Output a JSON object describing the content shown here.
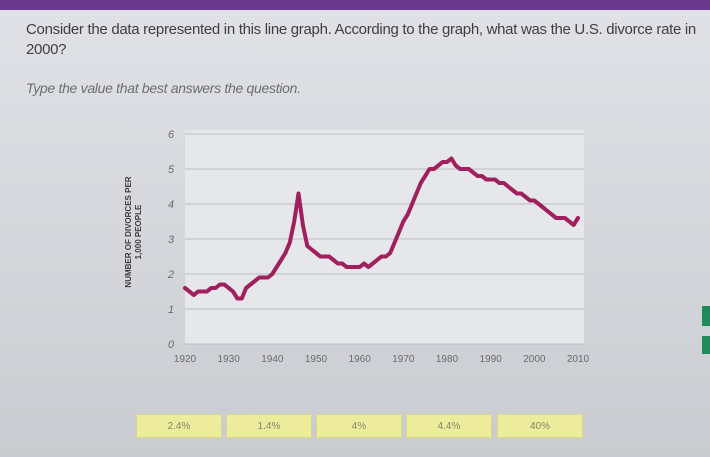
{
  "question": {
    "text": "Consider the data represented in this line graph. According to the graph, what was the U.S. divorce rate in 2000?",
    "instruction": "Type the value that best answers the question."
  },
  "chart_data": {
    "type": "line",
    "ylabel_line1": "NUMBER OF DIVORCES PER",
    "ylabel_line2": "1,000 PEOPLE",
    "x_ticks": [
      "1920",
      "1930",
      "1940",
      "1950",
      "1960",
      "1970",
      "1980",
      "1990",
      "2000",
      "2010"
    ],
    "y_ticks": [
      "0",
      "1",
      "2",
      "3",
      "4",
      "5",
      "6"
    ],
    "xlim": [
      1920,
      2010
    ],
    "ylim": [
      0,
      6
    ],
    "grid": true,
    "line_color": "#a0205e",
    "series": [
      {
        "x": [
          1920,
          1921,
          1922,
          1923,
          1924,
          1925,
          1926,
          1927,
          1928,
          1929,
          1930,
          1931,
          1932,
          1933,
          1934,
          1935,
          1936,
          1937,
          1938,
          1939,
          1940,
          1941,
          1942,
          1943,
          1944,
          1945,
          1946,
          1947,
          1948,
          1949,
          1950,
          1951,
          1952,
          1953,
          1954,
          1955,
          1956,
          1957,
          1958,
          1959,
          1960,
          1961,
          1962,
          1963,
          1964,
          1965,
          1966,
          1967,
          1968,
          1969,
          1970,
          1971,
          1972,
          1973,
          1974,
          1975,
          1976,
          1977,
          1978,
          1979,
          1980,
          1981,
          1982,
          1983,
          1984,
          1985,
          1986,
          1987,
          1988,
          1989,
          1990,
          1991,
          1992,
          1993,
          1994,
          1995,
          1996,
          1997,
          1998,
          1999,
          2000,
          2001,
          2002,
          2003,
          2004,
          2005,
          2006,
          2007,
          2008,
          2009,
          2010
        ],
        "values": [
          1.6,
          1.5,
          1.4,
          1.5,
          1.5,
          1.5,
          1.6,
          1.6,
          1.7,
          1.7,
          1.6,
          1.5,
          1.3,
          1.3,
          1.6,
          1.7,
          1.8,
          1.9,
          1.9,
          1.9,
          2.0,
          2.2,
          2.4,
          2.6,
          2.9,
          3.5,
          4.3,
          3.4,
          2.8,
          2.7,
          2.6,
          2.5,
          2.5,
          2.5,
          2.4,
          2.3,
          2.3,
          2.2,
          2.2,
          2.2,
          2.2,
          2.3,
          2.2,
          2.3,
          2.4,
          2.5,
          2.5,
          2.6,
          2.9,
          3.2,
          3.5,
          3.7,
          4.0,
          4.3,
          4.6,
          4.8,
          5.0,
          5.0,
          5.1,
          5.2,
          5.2,
          5.3,
          5.1,
          5.0,
          5.0,
          5.0,
          4.9,
          4.8,
          4.8,
          4.7,
          4.7,
          4.7,
          4.6,
          4.6,
          4.5,
          4.4,
          4.3,
          4.3,
          4.2,
          4.1,
          4.1,
          4.0,
          3.9,
          3.8,
          3.7,
          3.6,
          3.6,
          3.6,
          3.5,
          3.4,
          3.6
        ]
      }
    ]
  },
  "answers": [
    {
      "label": "2.4%"
    },
    {
      "label": "1.4%"
    },
    {
      "label": "4%"
    },
    {
      "label": "4.4%"
    },
    {
      "label": "40%"
    }
  ]
}
